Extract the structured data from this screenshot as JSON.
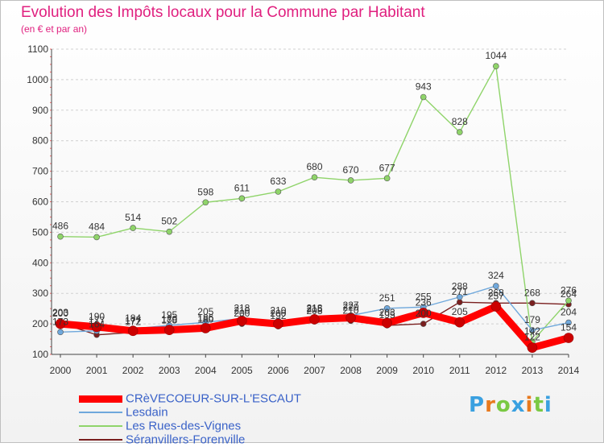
{
  "header": {
    "title": "Evolution des Impôts locaux pour la Commune par Habitant",
    "subtitle": "(en € et par an)"
  },
  "logo": {
    "letters": [
      "P",
      "r",
      "o",
      "x",
      "i",
      "t",
      "i"
    ],
    "colors": [
      "#3aa0e0",
      "#e87a1e",
      "#7ac943",
      "#3aa0e0",
      "#e87a1e",
      "#7ac943",
      "#3aa0e0"
    ]
  },
  "chart_data": {
    "type": "line",
    "title": "Evolution des Impôts locaux pour la Commune par Habitant",
    "subtitle": "(en € et par an)",
    "xlabel": "",
    "ylabel": "",
    "x": [
      "2000",
      "2001",
      "2002",
      "2003",
      "2004",
      "2005",
      "2006",
      "2007",
      "2008",
      "2009",
      "2010",
      "2011",
      "2012",
      "2013",
      "2014"
    ],
    "ylim": [
      100,
      1100
    ],
    "yticks": [
      100,
      200,
      300,
      400,
      500,
      600,
      700,
      800,
      900,
      1000,
      1100
    ],
    "grid": "dashed-horizontal",
    "legend_position": "bottom-left",
    "series": [
      {
        "name": "CRèVECOEUR-SUR-L'ESCAUT",
        "color": "#ff0000",
        "values": [
          200,
          190,
          177,
          180,
          186,
          210,
          200,
          215,
          220,
          203,
          236,
          205,
          257,
          122,
          154
        ]
      },
      {
        "name": "Lesdain",
        "color": "#6fa8dc",
        "values": [
          173,
          177,
          184,
          195,
          205,
          218,
          210,
          218,
          227,
          251,
          255,
          288,
          324,
          179,
          204
        ]
      },
      {
        "name": "Les Rues-des-Vignes",
        "color": "#8fd46a",
        "values": [
          486,
          484,
          514,
          502,
          598,
          611,
          633,
          680,
          670,
          677,
          943,
          828,
          1044,
          142,
          276
        ]
      },
      {
        "name": "Séranvillers-Forenville",
        "color": "#7a1f1f",
        "values": [
          203,
          164,
          172,
          178,
          180,
          200,
          192,
          208,
          210,
          195,
          200,
          271,
          268,
          268,
          264
        ]
      }
    ]
  }
}
